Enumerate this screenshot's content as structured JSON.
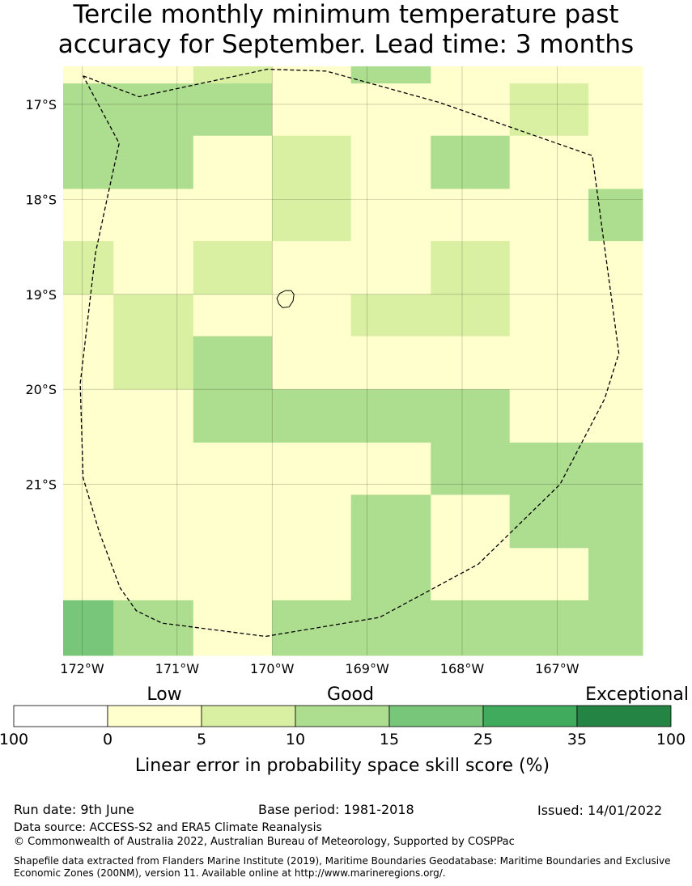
{
  "title_line1": "Tercile monthly minimum temperature past",
  "title_line2": "accuracy for September. Lead time: 3 months",
  "map": {
    "lon_range": [
      -172.2,
      -166.1
    ],
    "lat_range": [
      -16.6,
      -22.8
    ],
    "lon_ticks": [
      {
        "value": -172,
        "label": "172°W"
      },
      {
        "value": -171,
        "label": "171°W"
      },
      {
        "value": -170,
        "label": "170°W"
      },
      {
        "value": -169,
        "label": "169°W"
      },
      {
        "value": -168,
        "label": "168°W"
      },
      {
        "value": -167,
        "label": "167°W"
      }
    ],
    "lat_ticks": [
      {
        "value": -17,
        "label": "17°S"
      },
      {
        "value": -18,
        "label": "18°S"
      },
      {
        "value": -19,
        "label": "19°S"
      },
      {
        "value": -20,
        "label": "20°S"
      },
      {
        "value": -21,
        "label": "21°S"
      }
    ],
    "grid_lons": [
      -172.2,
      -171.67,
      -170.83,
      -170.0,
      -169.17,
      -168.33,
      -167.5,
      -166.67,
      -166.1
    ],
    "grid_lats": [
      -16.6,
      -16.78,
      -17.33,
      -17.89,
      -18.44,
      -19.0,
      -19.44,
      -20.0,
      -20.56,
      -21.11,
      -21.67,
      -22.22,
      -22.78,
      -22.8
    ],
    "cells": [
      [
        1,
        1,
        2,
        1,
        3,
        1,
        1,
        1
      ],
      [
        3,
        3,
        3,
        1,
        1,
        1,
        2,
        1
      ],
      [
        3,
        3,
        1,
        2,
        1,
        3,
        1,
        1
      ],
      [
        1,
        1,
        1,
        2,
        1,
        1,
        1,
        3
      ],
      [
        2,
        1,
        2,
        1,
        1,
        2,
        1,
        1
      ],
      [
        1,
        2,
        1,
        1,
        2,
        2,
        1,
        1
      ],
      [
        1,
        2,
        3,
        1,
        1,
        1,
        1,
        1
      ],
      [
        1,
        1,
        3,
        3,
        3,
        3,
        1,
        1
      ],
      [
        1,
        1,
        1,
        1,
        1,
        3,
        3,
        3
      ],
      [
        1,
        1,
        1,
        1,
        3,
        1,
        3,
        3
      ],
      [
        1,
        1,
        1,
        1,
        3,
        1,
        1,
        3
      ],
      [
        4,
        3,
        1,
        3,
        3,
        3,
        3,
        3
      ],
      [
        4,
        3,
        1,
        3,
        3,
        3,
        3,
        3
      ]
    ],
    "eez_boundary": [
      [
        -171.99,
        -16.7
      ],
      [
        -171.4,
        -16.92
      ],
      [
        -170.05,
        -16.63
      ],
      [
        -169.43,
        -16.65
      ],
      [
        -168.24,
        -16.98
      ],
      [
        -166.63,
        -17.54
      ],
      [
        -166.35,
        -19.62
      ],
      [
        -166.5,
        -20.1
      ],
      [
        -166.97,
        -21.0
      ],
      [
        -167.83,
        -21.84
      ],
      [
        -168.87,
        -22.4
      ],
      [
        -170.07,
        -22.6
      ],
      [
        -171.16,
        -22.46
      ],
      [
        -171.43,
        -22.33
      ],
      [
        -171.6,
        -22.09
      ],
      [
        -171.82,
        -21.5
      ],
      [
        -171.99,
        -20.93
      ],
      [
        -172.02,
        -19.94
      ],
      [
        -171.86,
        -18.57
      ],
      [
        -171.73,
        -17.96
      ],
      [
        -171.61,
        -17.41
      ],
      [
        -171.99,
        -16.7
      ]
    ],
    "island_outline": [
      [
        -169.86,
        -18.96
      ],
      [
        -169.8,
        -18.96
      ],
      [
        -169.77,
        -19.0
      ],
      [
        -169.78,
        -19.07
      ],
      [
        -169.82,
        -19.13
      ],
      [
        -169.89,
        -19.14
      ],
      [
        -169.93,
        -19.1
      ],
      [
        -169.95,
        -19.04
      ],
      [
        -169.92,
        -18.99
      ],
      [
        -169.86,
        -18.96
      ]
    ]
  },
  "legend": {
    "category_low": "Low",
    "category_good": "Good",
    "category_exceptional": "Exceptional",
    "colors": [
      "#ffffff",
      "#feffcc",
      "#d9f0a3",
      "#addd8e",
      "#78c679",
      "#41ab5d",
      "#238443"
    ],
    "tick_labels": [
      "100",
      "0",
      "5",
      "10",
      "15",
      "25",
      "35",
      "100"
    ],
    "label": "Linear error in probability space skill score (%)"
  },
  "footer": {
    "run_date": "Run date: 9th June",
    "base_period": "Base period: 1981-2018",
    "issued": "Issued: 14/01/2022",
    "data_source": "Data source: ACCESS-S2 and ERA5 Climate Reanalysis",
    "copyright": "© Commonwealth of Australia 2022, Australian Bureau of Meteorology, Supported by COSPPac",
    "shapefile": "Shapefile data extracted from Flanders Marine Institute (2019), Maritime Boundaries Geodatabase: Maritime Boundaries and Exclusive Economic Zones (200NM), version 11. Available online at http://www.marineregions.org/."
  }
}
